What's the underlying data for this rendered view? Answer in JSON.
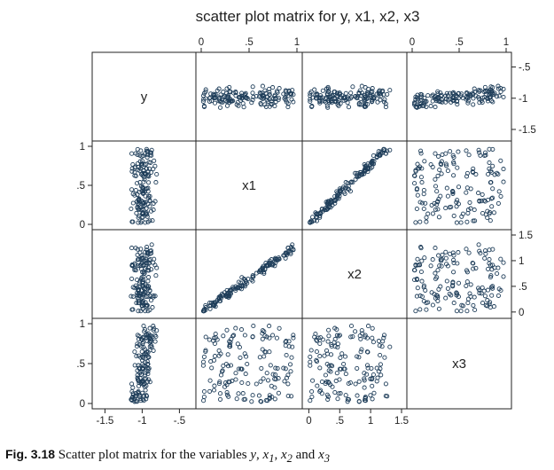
{
  "chart_data": {
    "type": "scatter",
    "title": "scatter plot matrix for y, x1, x2, x3",
    "variables": [
      "y",
      "x1",
      "x2",
      "x3"
    ],
    "ranges": {
      "y": [
        -1.6,
        -0.35
      ],
      "x1": [
        0,
        1
      ],
      "x2": [
        -0.02,
        1.5
      ],
      "x3": [
        0,
        1
      ]
    },
    "axes": {
      "top_x1": {
        "ticks": [
          0,
          0.5,
          1
        ],
        "labels": [
          "0",
          ".5",
          "1"
        ]
      },
      "top_x3": {
        "ticks": [
          0,
          0.5,
          1
        ],
        "labels": [
          "0",
          ".5",
          "1"
        ]
      },
      "right_y": {
        "ticks": [
          -0.5,
          -1,
          -1.5
        ],
        "labels": [
          "-.5",
          "-1",
          "-1.5"
        ]
      },
      "right_x2": {
        "ticks": [
          1.5,
          1,
          0.5,
          0
        ],
        "labels": [
          "1.5",
          "1",
          ".5",
          "0"
        ]
      },
      "left_x1": {
        "ticks": [
          1,
          0.5,
          0
        ],
        "labels": [
          "1",
          ".5",
          "0"
        ]
      },
      "left_x3": {
        "ticks": [
          1,
          0.5,
          0
        ],
        "labels": [
          "1",
          ".5",
          "0"
        ]
      },
      "bottom_y": {
        "ticks": [
          -1.5,
          -1,
          -0.5
        ],
        "labels": [
          "-1.5",
          "-1",
          "-.5"
        ]
      },
      "bottom_x2": {
        "ticks": [
          0,
          0.5,
          1,
          1.5
        ],
        "labels": [
          "0",
          ".5",
          "1",
          "1.5"
        ]
      }
    },
    "n_points": 150,
    "marker": "hollow circle",
    "color": "#1f3e5a"
  },
  "caption": {
    "label": "Fig. 3.18",
    "text_before": "Scatter plot matrix for the variables ",
    "v1": "y",
    "sep1": ", ",
    "v2": "x",
    "sub2": "1",
    "sep2": ", ",
    "v3": "x",
    "sub3": "2",
    "sep3": " and ",
    "v4": "x",
    "sub4": "3"
  }
}
